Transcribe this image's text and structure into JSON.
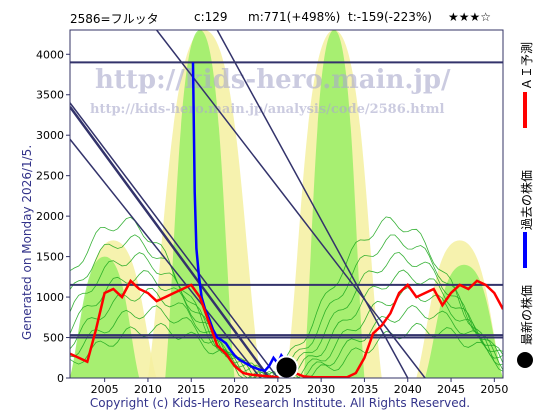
{
  "header": {
    "code_name": "2586=フルッタ",
    "c": "c:129",
    "m": "m:771(+498%)",
    "t": "t:-159(-223%)",
    "stars": "★★★☆"
  },
  "watermarks": {
    "url_main": "http://kids-hero.main.jp/",
    "url_sub": "http://kids-hero.main.jp/analysis/code/2586.html"
  },
  "generated": "Generated on Monday 2026/1/5.",
  "copyright": "Copyright (c) Kids-Hero Research Institute. All Rights Reserved.",
  "legend": [
    {
      "label": "ＡＩ予測",
      "color": "#ff0000"
    },
    {
      "label": "過去の株価",
      "color": "#0000ff"
    },
    {
      "label": "最新の株価",
      "color": "#000000"
    }
  ],
  "colors": {
    "frame": "#333366",
    "band_green": "#99ee66",
    "band_yellow": "#f4f0a0",
    "green_lines": "#22aa22",
    "navy": "#33336b",
    "ai_red": "#ff0000",
    "price_blue": "#0000ff"
  },
  "chart_data": {
    "type": "line",
    "xlim": [
      2001,
      2051
    ],
    "ylim": [
      0,
      4300
    ],
    "x_ticks": [
      2005,
      2010,
      2015,
      2020,
      2025,
      2030,
      2035,
      2040,
      2045,
      2050
    ],
    "y_ticks": [
      0,
      500,
      1000,
      1500,
      2000,
      2500,
      3000,
      3500,
      4000
    ],
    "horizontal_levels": [
      3900,
      1150,
      530,
      500
    ],
    "trend_lines": [
      {
        "x": [
          2001,
          2025
        ],
        "y": [
          3400,
          0
        ]
      },
      {
        "x": [
          2001,
          2024
        ],
        "y": [
          3350,
          0
        ]
      },
      {
        "x": [
          2001,
          2023
        ],
        "y": [
          2950,
          0
        ]
      },
      {
        "x": [
          2011,
          2042
        ],
        "y": [
          4300,
          0
        ]
      },
      {
        "x": [
          2018,
          2040
        ],
        "y": [
          4300,
          0
        ]
      }
    ],
    "series": [
      {
        "name": "過去の株価",
        "x": [
          2015.2,
          2015.4,
          2015.6,
          2015.9,
          2016.2,
          2016.6,
          2017.0,
          2017.5,
          2018.0,
          2018.5,
          2019.0,
          2019.5,
          2020.0,
          2020.5,
          2021.0,
          2021.5,
          2022.0,
          2022.5,
          2023.0,
          2023.5,
          2024.0,
          2024.5,
          2025.0,
          2025.4,
          2025.8,
          2026.0
        ],
        "y": [
          3900,
          2300,
          1600,
          1250,
          1000,
          850,
          750,
          600,
          500,
          470,
          430,
          350,
          280,
          230,
          200,
          170,
          140,
          120,
          100,
          90,
          150,
          250,
          180,
          280,
          220,
          129
        ]
      },
      {
        "name": "ＡＩ予測",
        "x": [
          2001,
          2002,
          2003,
          2004,
          2005,
          2006,
          2007,
          2008,
          2009,
          2010,
          2011,
          2012,
          2013,
          2014,
          2015,
          2016,
          2017,
          2018,
          2019,
          2020,
          2021,
          2022,
          2023,
          2024,
          2025,
          2026,
          2027,
          2028,
          2029,
          2030,
          2031,
          2032,
          2033,
          2034,
          2035,
          2036,
          2037,
          2038,
          2039,
          2040,
          2041,
          2042,
          2043,
          2044,
          2045,
          2046,
          2047,
          2048,
          2049,
          2050,
          2051
        ],
        "y": [
          300,
          250,
          200,
          600,
          1050,
          1100,
          1000,
          1200,
          1100,
          1050,
          950,
          1000,
          1050,
          1100,
          1150,
          1000,
          700,
          400,
          300,
          150,
          60,
          40,
          30,
          20,
          10,
          10,
          60,
          20,
          10,
          10,
          10,
          10,
          10,
          60,
          250,
          550,
          650,
          800,
          1050,
          1150,
          1000,
          1050,
          1100,
          900,
          1050,
          1150,
          1100,
          1200,
          1150,
          1050,
          850
        ]
      }
    ],
    "latest_point": {
      "x": 2026.0,
      "y": 129
    }
  }
}
